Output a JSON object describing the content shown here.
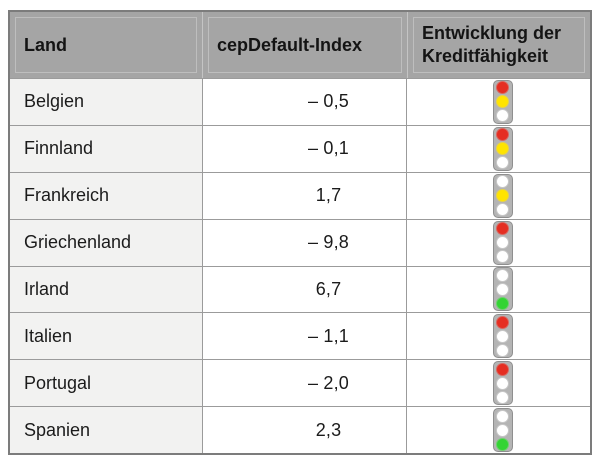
{
  "table": {
    "headers": [
      {
        "label": "Land"
      },
      {
        "label": "cepDefault-Index"
      },
      {
        "label": "Entwicklung der Kreditfähigkeit"
      }
    ],
    "rows": [
      {
        "land": "Belgien",
        "index": "– 0,5",
        "lights": [
          "red",
          "yellow"
        ]
      },
      {
        "land": "Finnland",
        "index": "– 0,1",
        "lights": [
          "red",
          "yellow"
        ]
      },
      {
        "land": "Frankreich",
        "index": "1,7",
        "lights": [
          "yellow"
        ]
      },
      {
        "land": "Griechenland",
        "index": "– 9,8",
        "lights": [
          "red"
        ]
      },
      {
        "land": "Irland",
        "index": "6,7",
        "lights": [
          "green"
        ]
      },
      {
        "land": "Italien",
        "index": "– 1,1",
        "lights": [
          "red"
        ]
      },
      {
        "land": "Portugal",
        "index": "– 2,0",
        "lights": [
          "red"
        ]
      },
      {
        "land": "Spanien",
        "index": "2,3",
        "lights": [
          "green"
        ]
      }
    ],
    "colors": {
      "header_bg": "#a5a5a5",
      "land_column_bg": "#f2f2f1",
      "grid_line": "#9b9b9b",
      "border": "#7c7c7c",
      "light_body": "#b4b4b4",
      "light_off": "#ffffff",
      "light_red": "#e52e22",
      "light_yellow": "#ffe400",
      "light_green": "#33d433"
    }
  },
  "chart_data": {
    "type": "table",
    "columns": [
      "Land",
      "cepDefault-Index",
      "Entwicklung der Kreditfähigkeit"
    ],
    "rows": [
      [
        "Belgien",
        -0.5,
        "red+yellow"
      ],
      [
        "Finnland",
        -0.1,
        "red+yellow"
      ],
      [
        "Frankreich",
        1.7,
        "yellow"
      ],
      [
        "Griechenland",
        -9.8,
        "red"
      ],
      [
        "Irland",
        6.7,
        "green"
      ],
      [
        "Italien",
        -1.1,
        "red"
      ],
      [
        "Portugal",
        -2.0,
        "red"
      ],
      [
        "Spanien",
        2.3,
        "green"
      ]
    ],
    "title": "",
    "notes": "Traffic-light icons encode development of creditworthiness; lit lamps listed top(red)/middle(yellow)/bottom(green)"
  }
}
